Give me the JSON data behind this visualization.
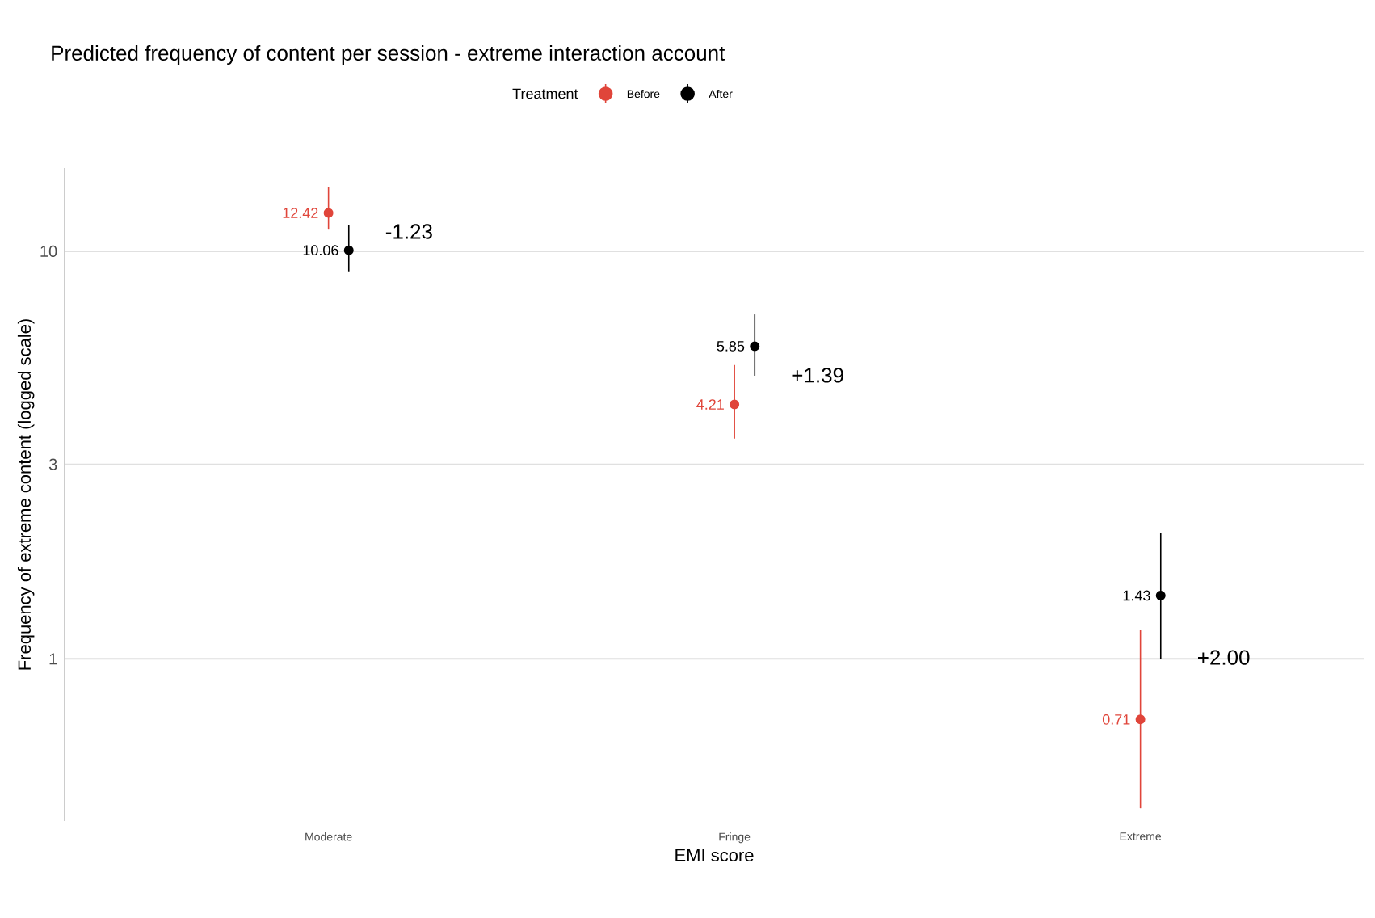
{
  "chart_data": {
    "type": "scatter",
    "title": "Predicted frequency of content per session - extreme interaction account",
    "xlabel": "EMI score",
    "ylabel": "Frequency of extreme content (logged scale)",
    "legend_title": "Treatment",
    "categories": [
      "Moderate",
      "Fringe",
      "Extreme"
    ],
    "series": [
      {
        "name": "Before",
        "color": "#e0453a",
        "values": [
          12.42,
          4.21,
          0.71
        ],
        "errors": [
          [
            11.3,
            14.4
          ],
          [
            3.47,
            5.26
          ],
          [
            0.43,
            1.18
          ]
        ]
      },
      {
        "name": "After",
        "color": "#000000",
        "values": [
          10.06,
          5.85,
          1.43
        ],
        "errors": [
          [
            8.93,
            11.6
          ],
          [
            4.95,
            7.0
          ],
          [
            1.0,
            2.04
          ]
        ]
      }
    ],
    "log": "y",
    "ylim": [
      0.4,
      16
    ],
    "yticks": [
      1,
      3,
      10
    ],
    "grid": "y",
    "legend": "top",
    "marker": "circle",
    "data_labels": true,
    "annotations": [
      "-1.23",
      "+1.39",
      "+2.00"
    ]
  }
}
